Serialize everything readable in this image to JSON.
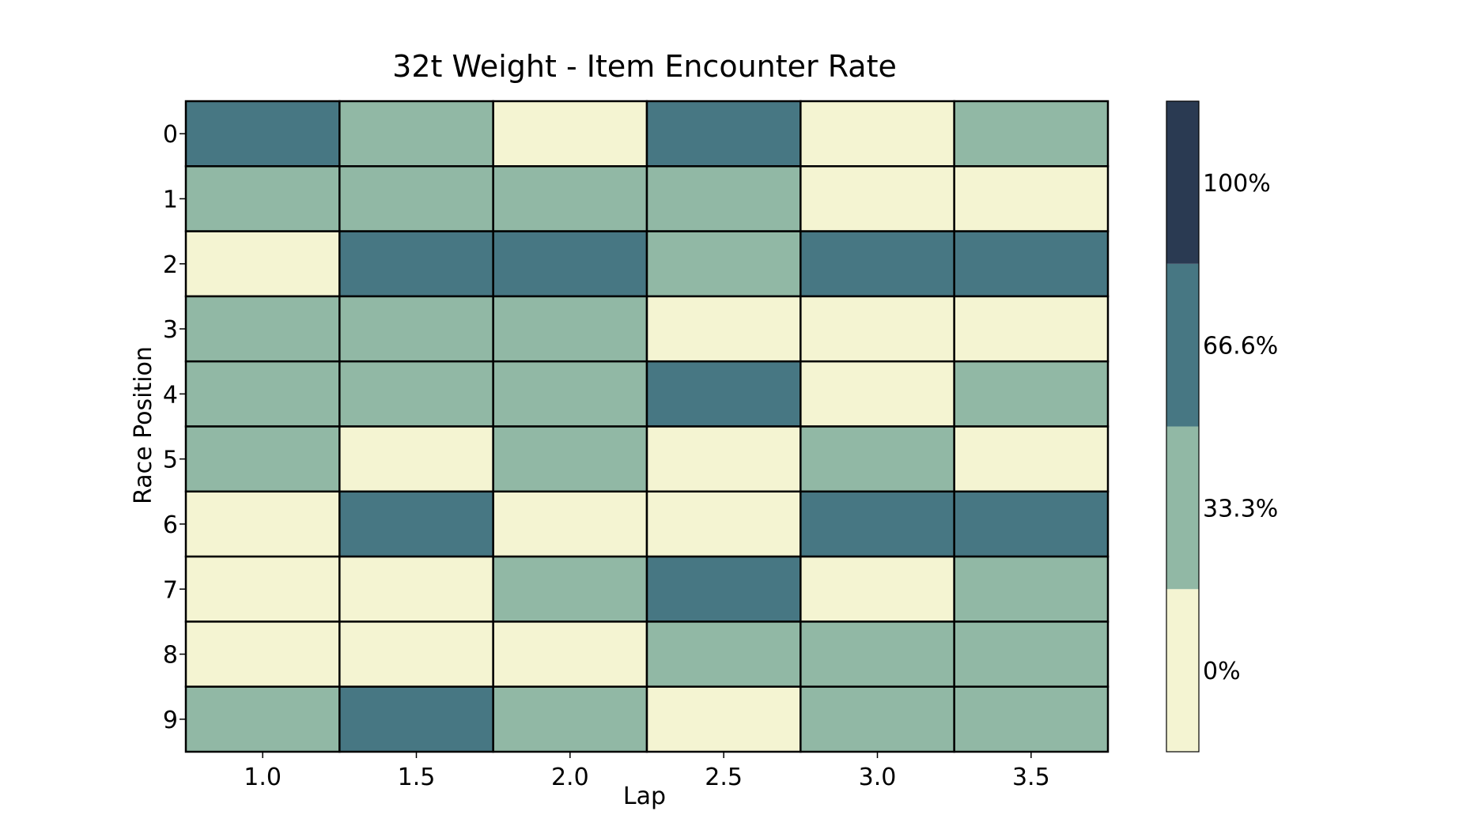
{
  "chart_data": {
    "type": "heatmap",
    "title": "32t Weight - Item Encounter Rate",
    "xlabel": "Lap",
    "ylabel": "Race Position",
    "x": [
      "1.0",
      "1.5",
      "2.0",
      "2.5",
      "3.0",
      "3.5"
    ],
    "y": [
      "0",
      "1",
      "2",
      "3",
      "4",
      "5",
      "6",
      "7",
      "8",
      "9"
    ],
    "values": [
      [
        66.6,
        33.3,
        0,
        66.6,
        0,
        33.3
      ],
      [
        33.3,
        33.3,
        33.3,
        33.3,
        0,
        0
      ],
      [
        0,
        66.6,
        66.6,
        33.3,
        66.6,
        66.6
      ],
      [
        33.3,
        33.3,
        33.3,
        0,
        0,
        0
      ],
      [
        33.3,
        33.3,
        33.3,
        66.6,
        0,
        33.3
      ],
      [
        33.3,
        0,
        33.3,
        0,
        33.3,
        0
      ],
      [
        0,
        66.6,
        0,
        0,
        66.6,
        66.6
      ],
      [
        0,
        0,
        33.3,
        66.6,
        0,
        33.3
      ],
      [
        0,
        0,
        0,
        33.3,
        33.3,
        33.3
      ],
      [
        33.3,
        66.6,
        33.3,
        0,
        33.3,
        33.3
      ]
    ],
    "value_unit": "%",
    "colorbar": {
      "levels": [
        {
          "label": "0%",
          "value": 0,
          "color": "#f4f4d2"
        },
        {
          "label": "33.3%",
          "value": 33.3,
          "color": "#91b8a5"
        },
        {
          "label": "66.6%",
          "value": 66.6,
          "color": "#477783"
        },
        {
          "label": "100%",
          "value": 100,
          "color": "#2a3a52"
        }
      ]
    },
    "grid": false,
    "legend": "colorbar-right"
  }
}
